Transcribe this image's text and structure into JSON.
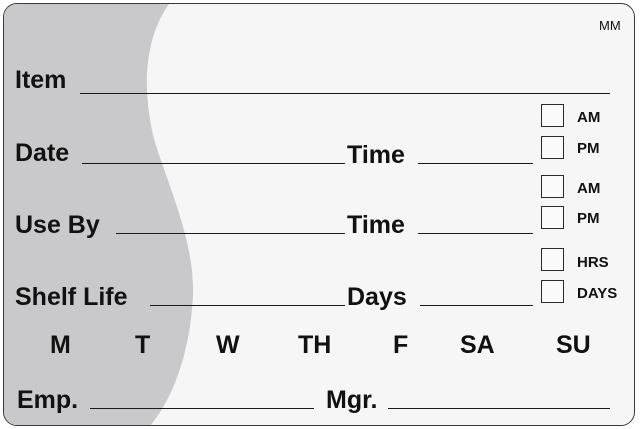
{
  "label": {
    "code": "MM",
    "item_label": "Item",
    "date_label": "Date",
    "time_label": "Time",
    "useby_label": "Use By",
    "time2_label": "Time",
    "shelf_label": "Shelf Life",
    "days_label": "Days",
    "checkboxes": {
      "am1": "AM",
      "pm1": "PM",
      "am2": "AM",
      "pm2": "PM",
      "hrs": "HRS",
      "days": "DAYS"
    },
    "weekdays": [
      "M",
      "T",
      "W",
      "TH",
      "F",
      "SA",
      "SU"
    ],
    "emp_label": "Emp.",
    "mgr_label": "Mgr."
  },
  "colors": {
    "background": "#f6f6f7",
    "wave": "#c9c9cb",
    "text": "#111111"
  }
}
